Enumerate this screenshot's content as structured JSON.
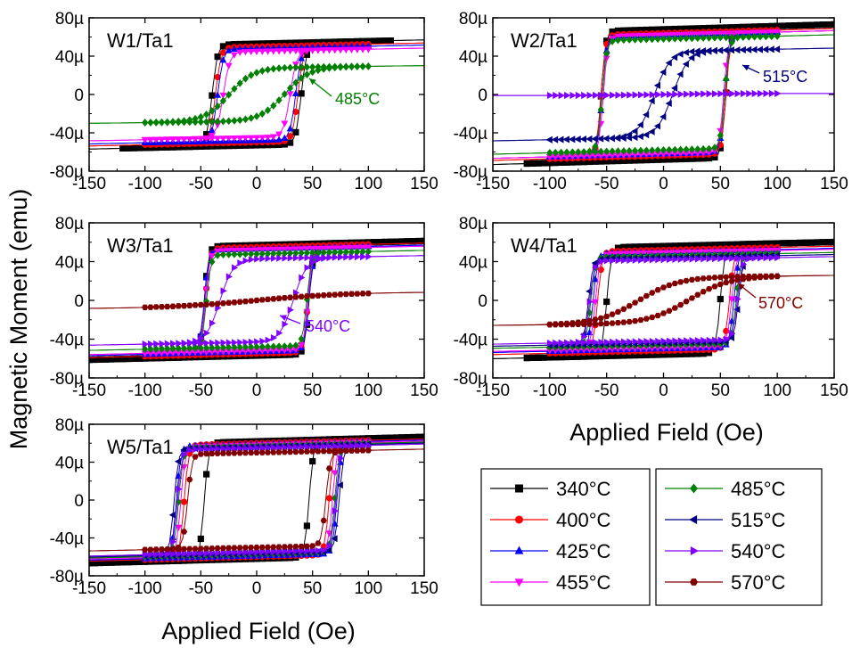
{
  "figure": {
    "ylabel": "Magnetic Moment (emu)",
    "xlabel": "Applied Field (Oe)"
  },
  "series_styles": [
    {
      "name": "340°C",
      "color": "#000000",
      "marker": "square"
    },
    {
      "name": "400°C",
      "color": "#ff0000",
      "marker": "circle"
    },
    {
      "name": "425°C",
      "color": "#0000ff",
      "marker": "triangle-up"
    },
    {
      "name": "455°C",
      "color": "#ff00ff",
      "marker": "triangle-down"
    },
    {
      "name": "485°C",
      "color": "#008000",
      "marker": "diamond"
    },
    {
      "name": "515°C",
      "color": "#000080",
      "marker": "triangle-left"
    },
    {
      "name": "540°C",
      "color": "#8000ff",
      "marker": "triangle-right"
    },
    {
      "name": "570°C",
      "color": "#800000",
      "marker": "hexagon"
    }
  ],
  "chart_data": [
    {
      "type": "line",
      "label": "W1/Ta1",
      "xlim": [
        -150,
        150
      ],
      "ylim": [
        -80,
        80
      ],
      "xticks": [
        "-150",
        "-100",
        "-50",
        "0",
        "50",
        "100",
        "150"
      ],
      "yticks": [
        "80µ",
        "40µ",
        "0",
        "-40µ",
        "-80µ"
      ],
      "annotation": {
        "text": "485°C",
        "series": "485°C"
      },
      "series": [
        {
          "name": "340°C",
          "xmin": -120,
          "xmax": 120,
          "hc": 40,
          "ms": 53,
          "w": 5
        },
        {
          "name": "400°C",
          "xmin": -100,
          "xmax": 100,
          "hc": 37,
          "ms": 50,
          "w": 5
        },
        {
          "name": "425°C",
          "xmin": -100,
          "xmax": 100,
          "hc": 35,
          "ms": 48,
          "w": 5
        },
        {
          "name": "455°C",
          "xmin": -100,
          "xmax": 100,
          "hc": 30,
          "ms": 45,
          "w": 6
        },
        {
          "name": "485°C",
          "xmin": -100,
          "xmax": 100,
          "hc": 25,
          "ms": 28,
          "w": 22
        }
      ]
    },
    {
      "type": "line",
      "label": "W2/Ta1",
      "xlim": [
        -150,
        150
      ],
      "ylim": [
        -80,
        80
      ],
      "xticks": [
        "-150",
        "-100",
        "-50",
        "0",
        "50",
        "100",
        "150"
      ],
      "yticks": [
        "80µ",
        "40µ",
        "0",
        "-40µ",
        "-80µ"
      ],
      "annotation": {
        "text": "515°C",
        "series": "515°C"
      },
      "series": [
        {
          "name": "340°C",
          "xmin": -120,
          "xmax": 150,
          "hc": 55,
          "ms": 68,
          "w": 4
        },
        {
          "name": "400°C",
          "xmin": -100,
          "xmax": 100,
          "hc": 55,
          "ms": 64,
          "w": 4
        },
        {
          "name": "425°C",
          "xmin": -100,
          "xmax": 100,
          "hc": 54,
          "ms": 62,
          "w": 4
        },
        {
          "name": "455°C",
          "xmin": -100,
          "xmax": 100,
          "hc": 53,
          "ms": 62,
          "w": 4
        },
        {
          "name": "485°C",
          "xmin": -100,
          "xmax": 100,
          "hc": 54,
          "ms": 58,
          "w": 4
        },
        {
          "name": "515°C",
          "xmin": -100,
          "xmax": 100,
          "hc": 8,
          "ms": 45,
          "w": 14
        },
        {
          "name": "540°C",
          "xmin": -100,
          "xmax": 100,
          "hc": 0,
          "ms": 1,
          "w": 50
        }
      ]
    },
    {
      "type": "line",
      "label": "W3/Ta1",
      "xlim": [
        -150,
        150
      ],
      "ylim": [
        -80,
        80
      ],
      "xticks": [
        "-150",
        "-100",
        "-50",
        "0",
        "50",
        "100",
        "150"
      ],
      "yticks": [
        "80µ",
        "40µ",
        "0",
        "-40µ",
        "-80µ"
      ],
      "annotation": {
        "text": "540°C",
        "series": "540°C"
      },
      "series": [
        {
          "name": "340°C",
          "xmin": -150,
          "xmax": 150,
          "hc": 47,
          "ms": 57,
          "w": 4
        },
        {
          "name": "400°C",
          "xmin": -100,
          "xmax": 100,
          "hc": 46,
          "ms": 55,
          "w": 4
        },
        {
          "name": "425°C",
          "xmin": -100,
          "xmax": 100,
          "hc": 47,
          "ms": 53,
          "w": 4
        },
        {
          "name": "455°C",
          "xmin": -100,
          "xmax": 100,
          "hc": 46,
          "ms": 52,
          "w": 4
        },
        {
          "name": "485°C",
          "xmin": -100,
          "xmax": 100,
          "hc": 45,
          "ms": 48,
          "w": 4
        },
        {
          "name": "540°C",
          "xmin": -100,
          "xmax": 100,
          "hc": 33,
          "ms": 43,
          "w": 12
        },
        {
          "name": "570°C",
          "xmin": -100,
          "xmax": 100,
          "hc": 0,
          "ms": 8,
          "w": 80
        }
      ]
    },
    {
      "type": "line",
      "label": "W4/Ta1",
      "xlim": [
        -150,
        150
      ],
      "ylim": [
        -80,
        80
      ],
      "xticks": [
        "-150",
        "-100",
        "-50",
        "0",
        "50",
        "100",
        "150"
      ],
      "yticks": [
        "80µ",
        "40µ",
        "0",
        "-40µ",
        "-80µ"
      ],
      "annotation": {
        "text": "570°C",
        "series": "570°C"
      },
      "series": [
        {
          "name": "340°C",
          "xmin": -120,
          "xmax": 150,
          "hc": 50,
          "ms": 56,
          "w": 4
        },
        {
          "name": "400°C",
          "xmin": -100,
          "xmax": 100,
          "hc": 58,
          "ms": 52,
          "w": 4
        },
        {
          "name": "425°C",
          "xmin": -100,
          "xmax": 100,
          "hc": 62,
          "ms": 50,
          "w": 4
        },
        {
          "name": "455°C",
          "xmin": -100,
          "xmax": 100,
          "hc": 60,
          "ms": 49,
          "w": 4
        },
        {
          "name": "485°C",
          "xmin": -100,
          "xmax": 100,
          "hc": 64,
          "ms": 46,
          "w": 4
        },
        {
          "name": "515°C",
          "xmin": -100,
          "xmax": 100,
          "hc": 66,
          "ms": 44,
          "w": 4
        },
        {
          "name": "540°C",
          "xmin": -100,
          "xmax": 100,
          "hc": 65,
          "ms": 42,
          "w": 4
        },
        {
          "name": "570°C",
          "xmin": -100,
          "xmax": 100,
          "hc": 22,
          "ms": 24,
          "w": 35
        }
      ]
    },
    {
      "type": "line",
      "label": "W5/Ta1",
      "xlim": [
        -150,
        150
      ],
      "ylim": [
        -80,
        80
      ],
      "xticks": [
        "-150",
        "-100",
        "-50",
        "0",
        "50",
        "100",
        "150"
      ],
      "yticks": [
        "80µ",
        "40µ",
        "0",
        "-40µ",
        "-80µ"
      ],
      "series": [
        {
          "name": "340°C",
          "xmin": -150,
          "xmax": 150,
          "hc": 47,
          "ms": 62,
          "w": 4
        },
        {
          "name": "400°C",
          "xmin": -100,
          "xmax": 100,
          "hc": 65,
          "ms": 60,
          "w": 4
        },
        {
          "name": "425°C",
          "xmin": -100,
          "xmax": 100,
          "hc": 72,
          "ms": 59,
          "w": 4
        },
        {
          "name": "455°C",
          "xmin": -100,
          "xmax": 100,
          "hc": 68,
          "ms": 58,
          "w": 4
        },
        {
          "name": "485°C",
          "xmin": -100,
          "xmax": 100,
          "hc": 70,
          "ms": 57,
          "w": 4
        },
        {
          "name": "515°C",
          "xmin": -100,
          "xmax": 100,
          "hc": 74,
          "ms": 56,
          "w": 4
        },
        {
          "name": "540°C",
          "xmin": -100,
          "xmax": 100,
          "hc": 71,
          "ms": 55,
          "w": 4
        },
        {
          "name": "570°C",
          "xmin": -100,
          "xmax": 100,
          "hc": 62,
          "ms": 50,
          "w": 4
        }
      ]
    }
  ]
}
